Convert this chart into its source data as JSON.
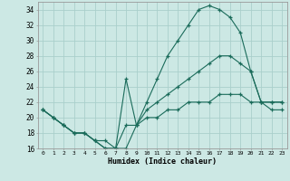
{
  "xlabel": "Humidex (Indice chaleur)",
  "background_color": "#cce8e4",
  "grid_color": "#aacfcb",
  "line_color": "#1a6b5a",
  "xlim": [
    -0.5,
    23.5
  ],
  "ylim": [
    16,
    35
  ],
  "yticks": [
    16,
    18,
    20,
    22,
    24,
    26,
    28,
    30,
    32,
    34
  ],
  "xticks": [
    0,
    1,
    2,
    3,
    4,
    5,
    6,
    7,
    8,
    9,
    10,
    11,
    12,
    13,
    14,
    15,
    16,
    17,
    18,
    19,
    20,
    21,
    22,
    23
  ],
  "series": [
    {
      "x": [
        0,
        1,
        2,
        3,
        4,
        5,
        6,
        7,
        8,
        9,
        10,
        11,
        12,
        13,
        14,
        15,
        16,
        17,
        18,
        19,
        20,
        21,
        22,
        23
      ],
      "y": [
        21,
        20,
        19,
        18,
        18,
        17,
        17,
        16,
        16,
        19,
        22,
        25,
        28,
        30,
        32,
        34,
        34.5,
        34,
        33,
        31,
        26,
        22,
        21,
        21
      ]
    },
    {
      "x": [
        0,
        1,
        2,
        3,
        4,
        5,
        6,
        7,
        8,
        9,
        10,
        11,
        12,
        13,
        14,
        15,
        16,
        17,
        18,
        19,
        20,
        21,
        22,
        23
      ],
      "y": [
        21,
        20,
        19,
        18,
        18,
        17,
        16,
        16,
        25,
        19,
        21,
        22,
        23,
        24,
        25,
        26,
        27,
        28,
        28,
        27,
        26,
        22,
        22,
        22
      ]
    },
    {
      "x": [
        0,
        1,
        2,
        3,
        4,
        5,
        6,
        7,
        8,
        9,
        10,
        11,
        12,
        13,
        14,
        15,
        16,
        17,
        18,
        19,
        20,
        21,
        22,
        23
      ],
      "y": [
        21,
        20,
        19,
        18,
        18,
        17,
        16,
        16,
        19,
        19,
        20,
        20,
        21,
        21,
        22,
        22,
        22,
        23,
        23,
        23,
        22,
        22,
        22,
        22
      ]
    }
  ]
}
